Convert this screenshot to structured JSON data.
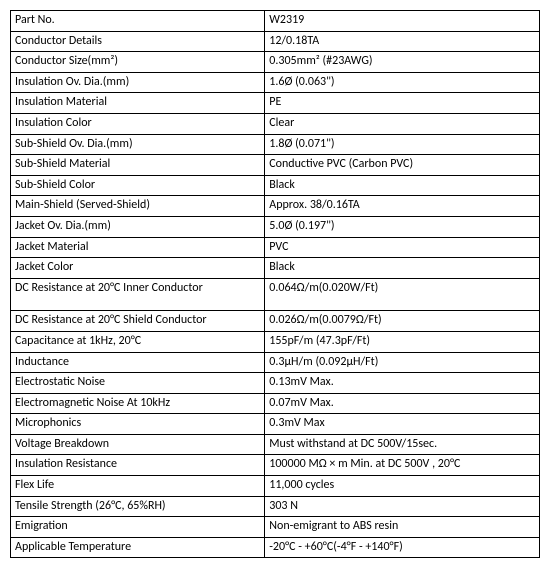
{
  "rows": [
    {
      "label": "Part No.",
      "value": "W2319"
    },
    {
      "label": "Conductor Details",
      "value": "12/0.18TA"
    },
    {
      "label": "Conductor Size(mm²)",
      "value": "0.305mm² (#23AWG)"
    },
    {
      "label": "Insulation Ov. Dia.(mm)",
      "value": "1.6Ø (0.063\")"
    },
    {
      "label": "Insulation Material",
      "value": "PE"
    },
    {
      "label": "Insulation Color",
      "value": "Clear"
    },
    {
      "label": "Sub-Shield Ov. Dia.(mm)",
      "value": "1.8Ø (0.071\")"
    },
    {
      "label": "Sub-Shield Material",
      "value": "Conductive PVC (Carbon PVC)"
    },
    {
      "label": "Sub-Shield Color",
      "value": "Black"
    },
    {
      "label": "Main-Shield (Served-Shield)",
      "value": "Approx. 38/0.16TA"
    },
    {
      "label": "Jacket Ov. Dia.(mm)",
      "value": "5.0Ø (0.197\")"
    },
    {
      "label": "Jacket Material",
      "value": "PVC"
    },
    {
      "label": "Jacket Color",
      "value": "Black"
    },
    {
      "label": "DC Resistance at 20°C Inner Conductor",
      "value": "0.064Ω/m(0.020W/Ft)",
      "tall": true
    },
    {
      "label": "DC Resistance at 20°C Shield Conductor",
      "value": "0.026Ω/m(0.0079Ω/Ft)"
    },
    {
      "label": "Capacitance at 1kHz, 20°C",
      "value": "155pF/m (47.3pF/Ft)"
    },
    {
      "label": "Inductance",
      "value": "0.3μH/m (0.092μH/Ft)"
    },
    {
      "label": "Electrostatic Noise",
      "value": "0.13mV Max."
    },
    {
      "label": "Electromagnetic Noise At 10kHz",
      "value": "0.07mV Max."
    },
    {
      "label": "Microphonics",
      "value": "0.3mV Max"
    },
    {
      "label": "Voltage Breakdown",
      "value": "Must withstand at DC 500V/15sec."
    },
    {
      "label": "Insulation Resistance",
      "value": "100000 MΩ × m Min. at DC 500V , 20°C"
    },
    {
      "label": "Flex Life",
      "value": "11,000 cycles"
    },
    {
      "label": "Tensile Strength (26°C, 65%RH)",
      "value": "303 N"
    },
    {
      "label": "Emigration",
      "value": "Non-emigrant to ABS resin"
    },
    {
      "label": "Applicable Temperature",
      "value": "-20°C - +60°C(-4°F - +140°F)"
    }
  ]
}
